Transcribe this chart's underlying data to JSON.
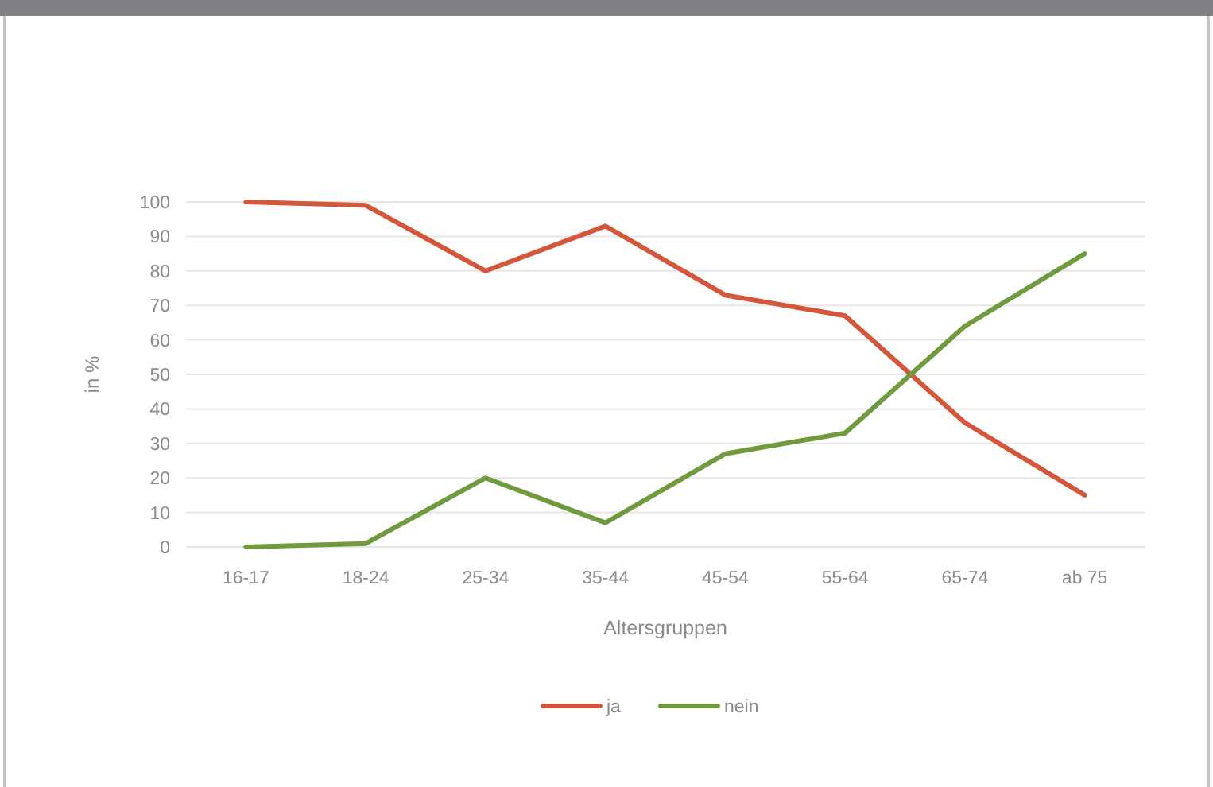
{
  "chart_data": {
    "type": "line",
    "xlabel": "Altersgruppen",
    "ylabel": "in %",
    "categories": [
      "16-17",
      "18-24",
      "25-34",
      "35-44",
      "45-54",
      "55-64",
      "65-74",
      "ab 75"
    ],
    "series": [
      {
        "name": "ja",
        "color": "#d5573b",
        "values": [
          100,
          99,
          80,
          93,
          73,
          67,
          36,
          15
        ]
      },
      {
        "name": "nein",
        "color": "#6f9a3e",
        "values": [
          0,
          1,
          20,
          7,
          27,
          33,
          64,
          85
        ]
      }
    ],
    "ylim": [
      0,
      100
    ],
    "yticks": [
      0,
      10,
      20,
      30,
      40,
      50,
      60,
      70,
      80,
      90,
      100
    ],
    "grid": "y",
    "legend": "bottom"
  }
}
